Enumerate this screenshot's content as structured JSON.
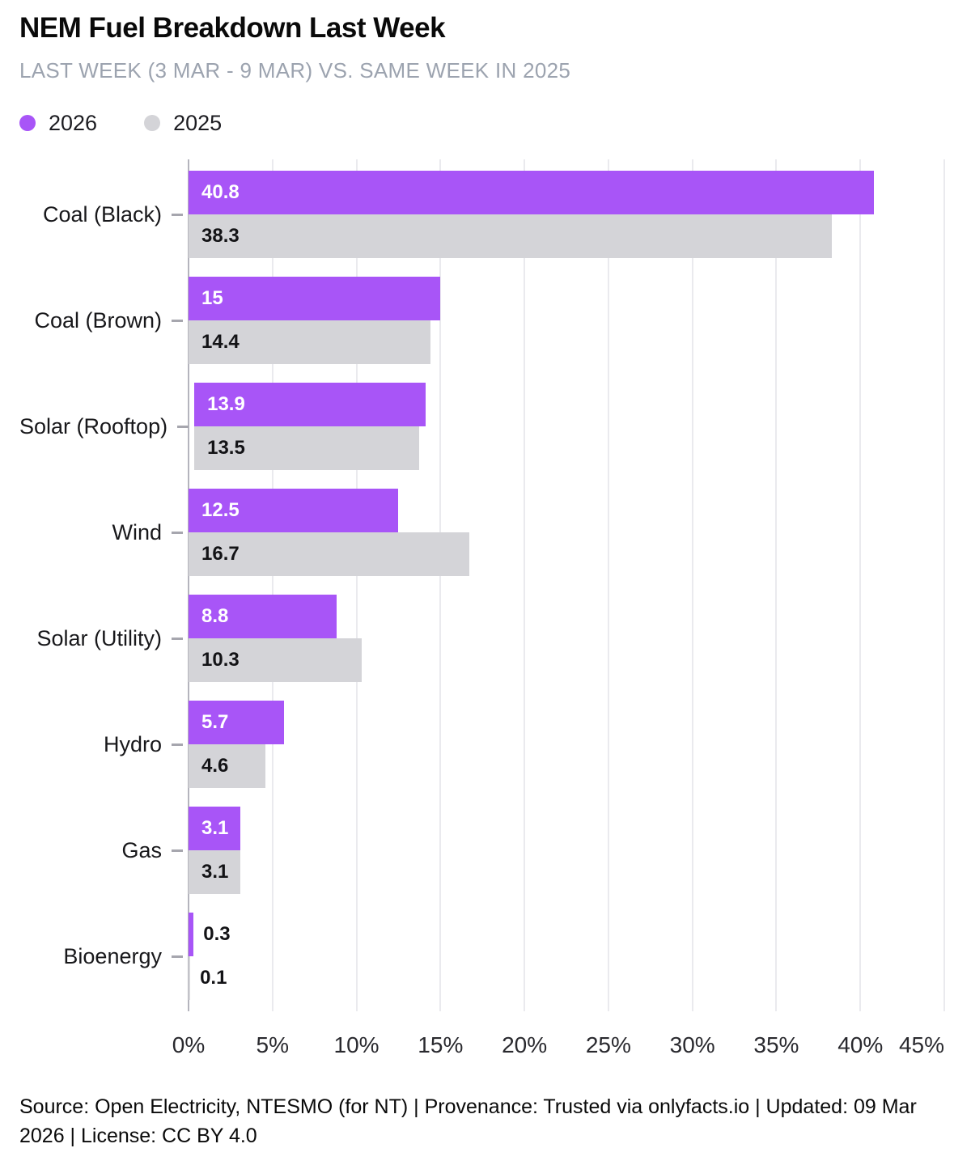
{
  "title": "NEM Fuel Breakdown Last Week",
  "subtitle": "LAST WEEK (3 MAR - 9 MAR) VS. SAME WEEK IN 2025",
  "legend": {
    "items": [
      {
        "label": "2026",
        "color": "#a855f7"
      },
      {
        "label": "2025",
        "color": "#d4d4d8"
      }
    ]
  },
  "chart_data": {
    "type": "bar",
    "orientation": "horizontal",
    "title": "NEM Fuel Breakdown Last Week",
    "subtitle": "LAST WEEK (3 MAR - 9 MAR) VS. SAME WEEK IN 2025",
    "categories": [
      "Coal (Black)",
      "Coal (Brown)",
      "Solar (Rooftop)",
      "Wind",
      "Solar (Utility)",
      "Hydro",
      "Gas",
      "Bioenergy"
    ],
    "series": [
      {
        "name": "2026",
        "color": "#a855f7",
        "values": [
          40.8,
          15,
          13.9,
          12.5,
          8.8,
          5.7,
          3.1,
          0.3
        ],
        "labels": [
          "40.8",
          "15",
          "13.9",
          "12.5",
          "8.8",
          "5.7",
          "3.1",
          "0.3"
        ]
      },
      {
        "name": "2025",
        "color": "#d4d4d8",
        "values": [
          38.3,
          14.4,
          13.5,
          16.7,
          10.3,
          4.6,
          3.1,
          0.1
        ],
        "labels": [
          "38.3",
          "14.4",
          "13.5",
          "16.7",
          "10.3",
          "4.6",
          "3.1",
          "0.1"
        ]
      }
    ],
    "x_axis": {
      "unit": "%",
      "tick_labels": [
        "0%",
        "5%",
        "10%",
        "15%",
        "20%",
        "25%",
        "30%",
        "35%",
        "40%",
        "45%"
      ],
      "tick_values": [
        0,
        5,
        10,
        15,
        20,
        25,
        30,
        35,
        40,
        45
      ],
      "min": 0,
      "max": 45
    },
    "grid": true,
    "legend_position": "top",
    "value_label_outside_threshold": 1.5
  },
  "footer": {
    "text": "Source: Open Electricity, NTESMO (for NT) | Provenance: Trusted via onlyfacts.io | Updated: 09 Mar 2026 | License: CC BY 4.0"
  }
}
